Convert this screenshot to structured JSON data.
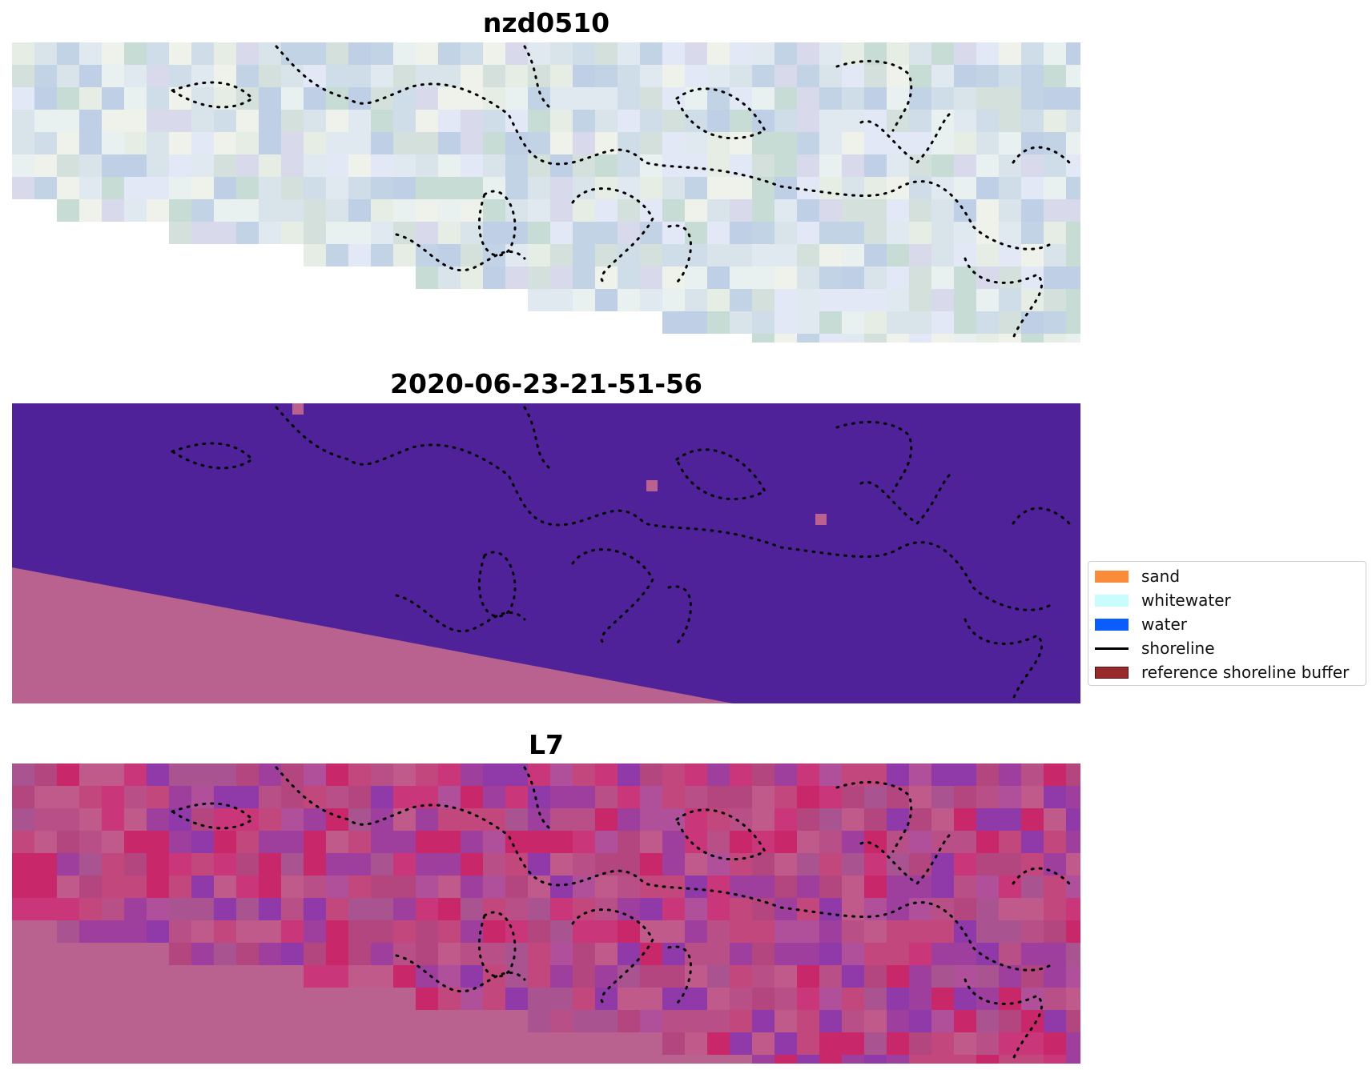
{
  "panels": [
    {
      "title": "nzd0510",
      "kind": "rgb"
    },
    {
      "title": "2020-06-23-21-51-56",
      "kind": "classification"
    },
    {
      "title": "L7",
      "kind": "index"
    }
  ],
  "legend": {
    "items": [
      {
        "label": "sand",
        "type": "patch",
        "color": "#f98b3b"
      },
      {
        "label": "whitewater",
        "type": "patch",
        "color": "#c9fdfd"
      },
      {
        "label": "water",
        "type": "patch",
        "color": "#0a5cfb"
      },
      {
        "label": "shoreline",
        "type": "line",
        "color": "#000000"
      },
      {
        "label": "reference shoreline buffer",
        "type": "patch",
        "color": "#972b2b"
      }
    ]
  },
  "colors": {
    "class_background": "#50229a",
    "nodata": "#b9628f",
    "class_speck": "#b9628f",
    "shoreline": "#000000"
  }
}
